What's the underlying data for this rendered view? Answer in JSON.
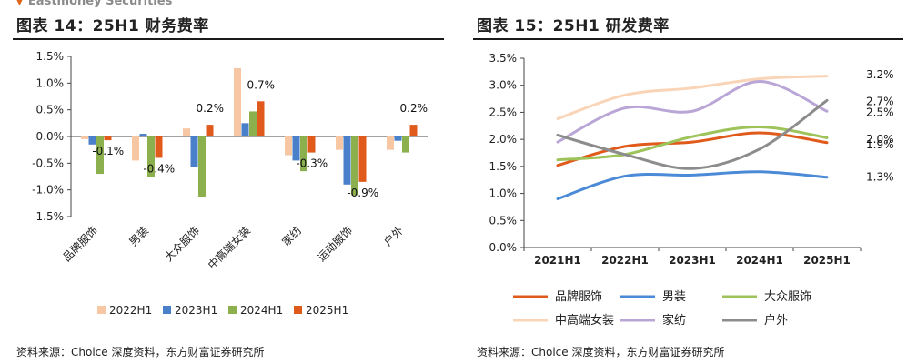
{
  "header": {
    "brand": "Eastmoney Securities"
  },
  "figures": {
    "left": {
      "title": "图表 14：25H1 财务费率",
      "source": "资料来源：Choice 深度资料，东方财富证券研究所"
    },
    "right": {
      "title": "图表 15：25H1 研发费率",
      "source": "资料来源：Choice 深度资料，东方财富证券研究所"
    }
  },
  "chart_data": [
    {
      "type": "bar",
      "title": "25H1 财务费率",
      "categories": [
        "品牌服饰",
        "男装",
        "大众服饰",
        "中高端女装",
        "家纺",
        "运动服饰",
        "户外"
      ],
      "series": [
        {
          "name": "2022H1",
          "color": "#f7c6a3",
          "values": [
            -0.05,
            -0.45,
            0.15,
            1.28,
            -0.35,
            -0.25,
            -0.25
          ]
        },
        {
          "name": "2023H1",
          "color": "#4a7fc9",
          "values": [
            -0.15,
            0.05,
            -0.57,
            0.25,
            -0.45,
            -0.9,
            -0.08
          ]
        },
        {
          "name": "2024H1",
          "color": "#8db04f",
          "values": [
            -0.7,
            -0.75,
            -1.13,
            0.47,
            -0.65,
            -1.1,
            -0.3
          ]
        },
        {
          "name": "2025H1",
          "color": "#e05a1c",
          "values": [
            -0.07,
            -0.4,
            0.22,
            0.66,
            -0.3,
            -0.85,
            0.22
          ]
        }
      ],
      "data_labels": [
        "-0.1%",
        "-0.4%",
        "0.2%",
        "0.7%",
        "-0.3%",
        "-0.9%",
        "0.2%"
      ],
      "ylim": [
        -1.5,
        1.5
      ],
      "yticks": [
        "-1.5%",
        "-1.0%",
        "-0.5%",
        "0.0%",
        "0.5%",
        "1.0%",
        "1.5%"
      ],
      "ytick_values": [
        -1.5,
        -1.0,
        -0.5,
        0.0,
        0.5,
        1.0,
        1.5
      ],
      "legend": "bottom"
    },
    {
      "type": "line",
      "title": "25H1 研发费率",
      "x": [
        "2021H1",
        "2022H1",
        "2023H1",
        "2024H1",
        "2025H1"
      ],
      "series": [
        {
          "name": "品牌服饰",
          "color": "#e05a1c",
          "values": [
            1.52,
            1.87,
            1.95,
            2.12,
            1.94
          ]
        },
        {
          "name": "男装",
          "color": "#4a8ad6",
          "values": [
            0.9,
            1.32,
            1.34,
            1.4,
            1.3
          ]
        },
        {
          "name": "大众服饰",
          "color": "#9dc35a",
          "values": [
            1.62,
            1.72,
            2.05,
            2.23,
            2.03
          ]
        },
        {
          "name": "中高端女装",
          "color": "#fad4b6",
          "values": [
            2.38,
            2.82,
            2.95,
            3.12,
            3.17
          ]
        },
        {
          "name": "家纺",
          "color": "#b9a6d6",
          "values": [
            1.95,
            2.58,
            2.52,
            3.07,
            2.52
          ]
        },
        {
          "name": "户外",
          "color": "#8c8c8c",
          "values": [
            2.08,
            1.72,
            1.46,
            1.82,
            2.72
          ]
        }
      ],
      "end_labels": [
        "3.2%",
        "2.7%",
        "2.5%",
        "2.0%",
        "1.9%",
        "1.3%"
      ],
      "end_label_values": [
        3.2,
        2.7,
        2.5,
        2.0,
        1.9,
        1.3
      ],
      "ylim": [
        0,
        3.5
      ],
      "yticks": [
        "0.0%",
        "0.5%",
        "1.0%",
        "1.5%",
        "2.0%",
        "2.5%",
        "3.0%",
        "3.5%"
      ],
      "ytick_values": [
        0,
        0.5,
        1.0,
        1.5,
        2.0,
        2.5,
        3.0,
        3.5
      ],
      "legend": "bottom"
    }
  ]
}
